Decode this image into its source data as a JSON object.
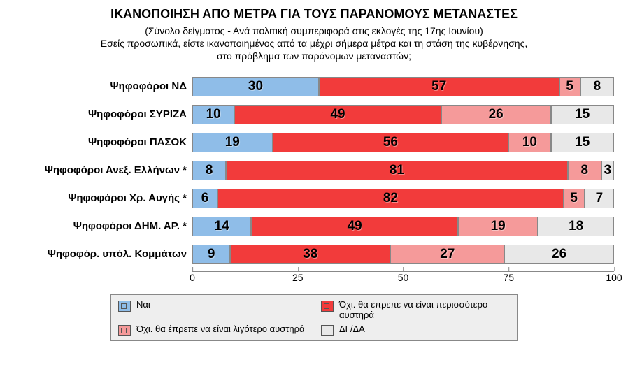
{
  "chart": {
    "type": "stacked-bar-horizontal",
    "title": "ΙΚΑΝΟΠΟΙΗΣΗ ΑΠΟ ΜΕΤΡΑ ΓΙΑ ΤΟΥΣ ΠΑΡΑΝΟΜΟΥΣ ΜΕΤΑΝΑΣΤΕΣ",
    "subtitle_line1": "(Σύνολο δείγματος - Ανά πολιτική συμπεριφορά στις εκλογές της 17ης Ιουνίου)",
    "subtitle_line2": "Εσείς προσωπικά, είστε ικανοποιημένος από τα μέχρι σήμερα μέτρα και τη στάση της κυβέρνησης,",
    "subtitle_line3": "στο πρόβλημα των παράνομων μεταναστών;",
    "title_fontsize": 18,
    "subtitle_fontsize": 14,
    "value_fontsize": 19,
    "label_fontsize": 15,
    "background_color": "#ffffff",
    "legend_bg": "#eeeeee",
    "border_color": "#888888",
    "x_axis": {
      "min": 0,
      "max": 100,
      "ticks": [
        0,
        25,
        50,
        75,
        100
      ]
    },
    "series_colors": {
      "yes": "#8fbde8",
      "no_more": "#f23b3b",
      "no_less": "#f59a9a",
      "dk": "#e8e8e8"
    },
    "legend": {
      "yes": "Ναι",
      "no_more": "Όχι. θα έπρεπε να είναι περισσότερο αυστηρά",
      "no_less": "Όχι. θα έπρεπε να είναι λιγότερο αυστηρά",
      "dk": "ΔΓ/ΔΑ"
    },
    "rows": [
      {
        "label": "Ψηφοφόροι ΝΔ",
        "values": {
          "yes": 30,
          "no_more": 57,
          "no_less": 5,
          "dk": 8
        }
      },
      {
        "label": "Ψηφοφόροι ΣΥΡΙΖΑ",
        "values": {
          "yes": 10,
          "no_more": 49,
          "no_less": 26,
          "dk": 15
        }
      },
      {
        "label": "Ψηφοφόροι ΠΑΣΟΚ",
        "values": {
          "yes": 19,
          "no_more": 56,
          "no_less": 10,
          "dk": 15
        }
      },
      {
        "label": "Ψηφοφόροι Ανεξ. Ελλήνων *",
        "values": {
          "yes": 8,
          "no_more": 81,
          "no_less": 8,
          "dk": 3
        }
      },
      {
        "label": "Ψηφοφόροι Χρ. Αυγής *",
        "values": {
          "yes": 6,
          "no_more": 82,
          "no_less": 5,
          "dk": 7
        }
      },
      {
        "label": "Ψηφοφόροι ΔΗΜ. ΑΡ. *",
        "values": {
          "yes": 14,
          "no_more": 49,
          "no_less": 19,
          "dk": 18
        }
      },
      {
        "label": "Ψηφοφόρ. υπόλ. Κομμάτων",
        "values": {
          "yes": 9,
          "no_more": 38,
          "no_less": 27,
          "dk": 26
        }
      }
    ]
  }
}
